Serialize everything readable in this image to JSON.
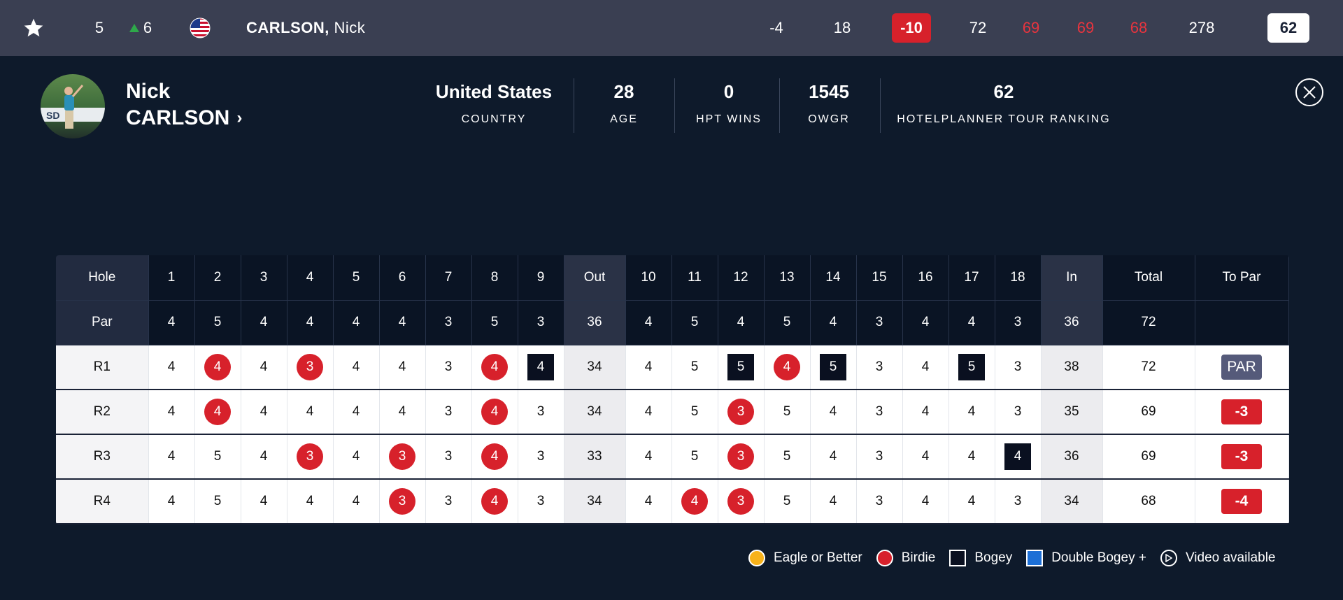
{
  "topbar": {
    "position": "5",
    "movement": "6",
    "flag_country": "United States",
    "name_last": "CARLSON,",
    "name_first": "Nick",
    "to_par": "-4",
    "thru": "18",
    "total_to_par": "-10",
    "rounds": [
      "72",
      "69",
      "69",
      "68"
    ],
    "strokes": "278",
    "projected": "62",
    "colors": {
      "red": "#d7212b",
      "green": "#2ea84a"
    }
  },
  "player": {
    "first_name": "Nick",
    "last_name": "CARLSON",
    "stats": [
      {
        "value": "United States",
        "label": "COUNTRY"
      },
      {
        "value": "28",
        "label": "AGE"
      },
      {
        "value": "0",
        "label": "HPT WINS"
      },
      {
        "value": "1545",
        "label": "OWGR"
      },
      {
        "value": "62",
        "label": "HOTELPLANNER TOUR RANKING"
      }
    ]
  },
  "scorecard": {
    "headers": [
      "Hole",
      "1",
      "2",
      "3",
      "4",
      "5",
      "6",
      "7",
      "8",
      "9",
      "Out",
      "10",
      "11",
      "12",
      "13",
      "14",
      "15",
      "16",
      "17",
      "18",
      "In",
      "Total",
      "To Par"
    ],
    "par": [
      "Par",
      "4",
      "5",
      "4",
      "4",
      "4",
      "4",
      "3",
      "5",
      "3",
      "36",
      "4",
      "5",
      "4",
      "5",
      "4",
      "3",
      "4",
      "4",
      "3",
      "36",
      "72",
      ""
    ],
    "rounds": [
      {
        "label": "R1",
        "scores": [
          "4",
          "4",
          "4",
          "3",
          "4",
          "4",
          "3",
          "4",
          "4",
          "34",
          "4",
          "5",
          "5",
          "4",
          "5",
          "3",
          "4",
          "5",
          "3",
          "38",
          "72"
        ],
        "to_par": "PAR"
      },
      {
        "label": "R2",
        "scores": [
          "4",
          "4",
          "4",
          "4",
          "4",
          "4",
          "3",
          "4",
          "3",
          "34",
          "4",
          "5",
          "3",
          "5",
          "4",
          "3",
          "4",
          "4",
          "3",
          "35",
          "69"
        ],
        "to_par": "-3"
      },
      {
        "label": "R3",
        "scores": [
          "4",
          "5",
          "4",
          "3",
          "4",
          "3",
          "3",
          "4",
          "3",
          "33",
          "4",
          "5",
          "3",
          "5",
          "4",
          "3",
          "4",
          "4",
          "4",
          "36",
          "69"
        ],
        "to_par": "-3"
      },
      {
        "label": "R4",
        "scores": [
          "4",
          "5",
          "4",
          "4",
          "4",
          "3",
          "3",
          "4",
          "3",
          "34",
          "4",
          "4",
          "3",
          "5",
          "4",
          "3",
          "4",
          "4",
          "3",
          "34",
          "68"
        ],
        "to_par": "-4"
      }
    ]
  },
  "legend": {
    "eagle": "Eagle or Better",
    "birdie": "Birdie",
    "bogey": "Bogey",
    "double": "Double Bogey +",
    "video": "Video available",
    "colors": {
      "eagle": "#f7b21a",
      "birdie": "#d7212b",
      "bogey": "#0a1020",
      "double": "#1c6fd6"
    }
  }
}
